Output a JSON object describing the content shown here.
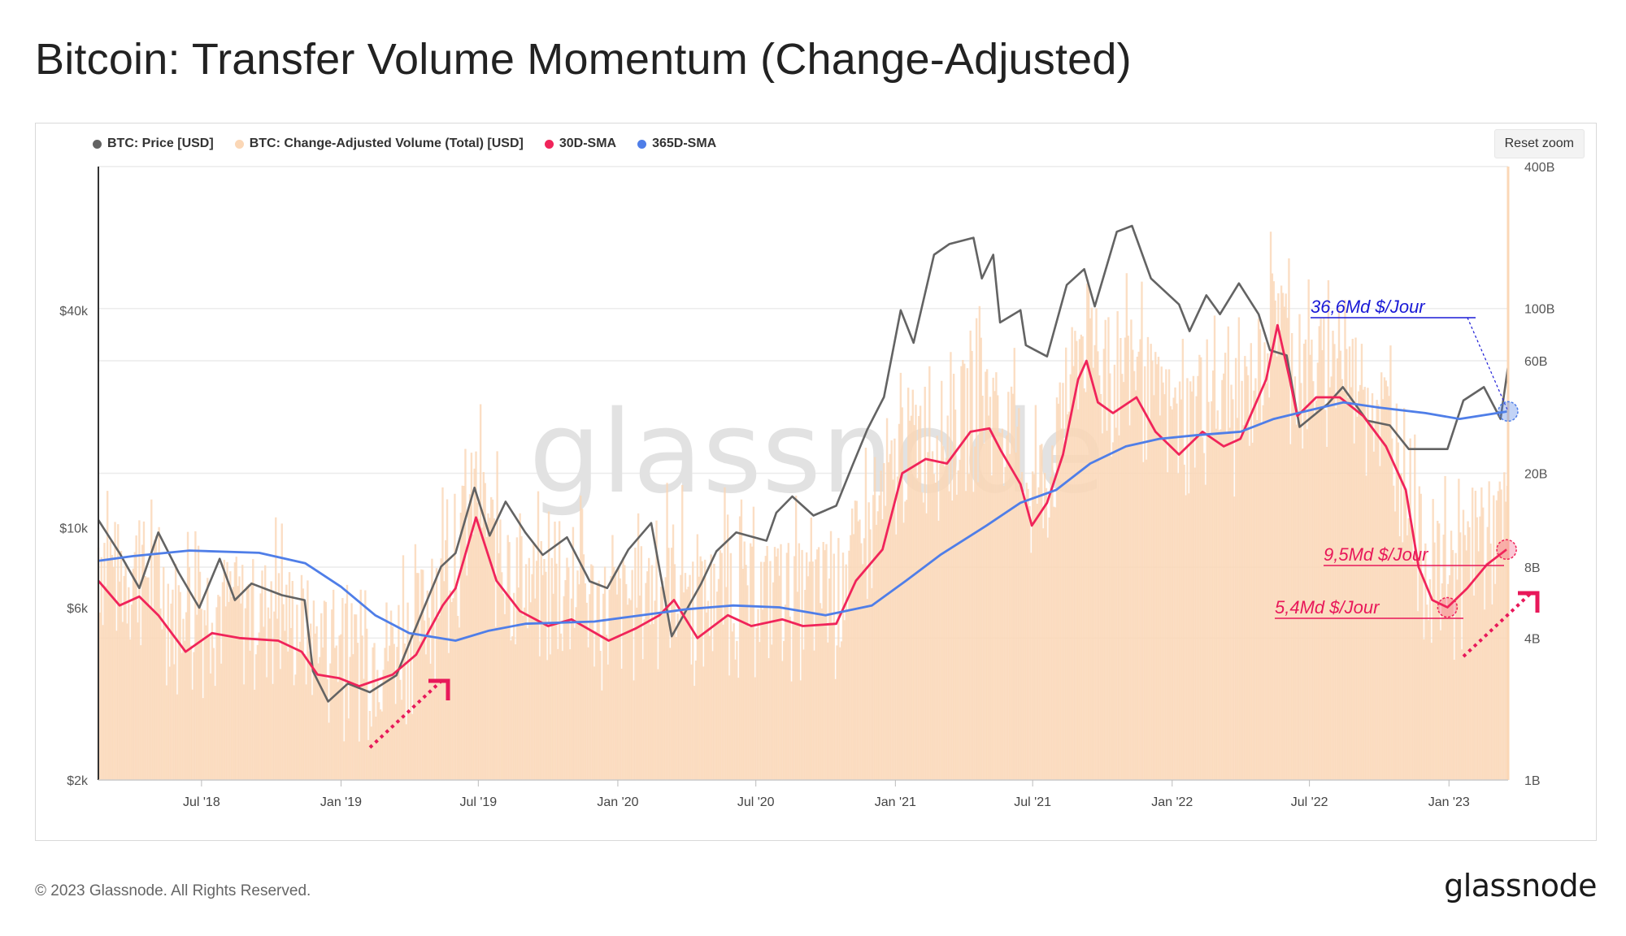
{
  "title": "Bitcoin: Transfer Volume Momentum (Change-Adjusted)",
  "reset_zoom": "Reset zoom",
  "watermark": "glassnode",
  "copyright": "© 2023 Glassnode. All Rights Reserved.",
  "brand": "glassnode",
  "legend": [
    {
      "label": "BTC: Price [USD]",
      "color": "#636363"
    },
    {
      "label": "BTC: Change-Adjusted Volume (Total) [USD]",
      "color": "#fbd7b6"
    },
    {
      "label": "30D-SMA",
      "color": "#f0245a"
    },
    {
      "label": "365D-SMA",
      "color": "#4f7ee8"
    }
  ],
  "chart_data": {
    "type": "line",
    "x_ticks": [
      "Jul '18",
      "Jan '19",
      "Jul '19",
      "Jan '20",
      "Jul '20",
      "Jan '21",
      "Jul '21",
      "Jan '22",
      "Jul '22",
      "Jan '23"
    ],
    "x_range": [
      "2018-02-15",
      "2023-03-20"
    ],
    "y_left": {
      "scale": "log",
      "ticks": [
        "$2k",
        "$6k",
        "$10k",
        "$40k"
      ],
      "tick_values": [
        2000,
        6000,
        10000,
        40000
      ],
      "range": [
        2000,
        100000
      ]
    },
    "y_right": {
      "scale": "log",
      "ticks": [
        "1B",
        "4B",
        "8B",
        "20B",
        "60B",
        "100B",
        "400B"
      ],
      "tick_values": [
        1,
        4,
        8,
        20,
        60,
        100,
        400
      ],
      "range": [
        1,
        400
      ],
      "unit": "B"
    },
    "grid": true,
    "legend_position": "top-left",
    "series": [
      {
        "name": "BTC: Price [USD]",
        "axis": "left",
        "color": "#636363",
        "points": [
          [
            "2018-02-15",
            10500
          ],
          [
            "2018-03-15",
            8500
          ],
          [
            "2018-04-10",
            6800
          ],
          [
            "2018-05-05",
            9700
          ],
          [
            "2018-06-01",
            7500
          ],
          [
            "2018-06-28",
            6000
          ],
          [
            "2018-07-25",
            8200
          ],
          [
            "2018-08-14",
            6300
          ],
          [
            "2018-09-05",
            7000
          ],
          [
            "2018-10-15",
            6500
          ],
          [
            "2018-11-14",
            6300
          ],
          [
            "2018-11-25",
            4000
          ],
          [
            "2018-12-15",
            3300
          ],
          [
            "2019-01-10",
            3700
          ],
          [
            "2019-02-08",
            3500
          ],
          [
            "2019-03-15",
            3900
          ],
          [
            "2019-04-03",
            4900
          ],
          [
            "2019-05-13",
            7800
          ],
          [
            "2019-06-01",
            8500
          ],
          [
            "2019-06-26",
            12900
          ],
          [
            "2019-07-16",
            9500
          ],
          [
            "2019-08-06",
            11800
          ],
          [
            "2019-09-01",
            9700
          ],
          [
            "2019-09-24",
            8400
          ],
          [
            "2019-10-26",
            9400
          ],
          [
            "2019-11-25",
            7100
          ],
          [
            "2019-12-18",
            6800
          ],
          [
            "2020-01-15",
            8700
          ],
          [
            "2020-02-14",
            10300
          ],
          [
            "2020-03-12",
            5000
          ],
          [
            "2020-04-20",
            7000
          ],
          [
            "2020-05-10",
            8600
          ],
          [
            "2020-06-05",
            9700
          ],
          [
            "2020-07-15",
            9200
          ],
          [
            "2020-07-28",
            11000
          ],
          [
            "2020-08-18",
            12200
          ],
          [
            "2020-09-15",
            10800
          ],
          [
            "2020-10-15",
            11500
          ],
          [
            "2020-11-05",
            14800
          ],
          [
            "2020-11-25",
            18700
          ],
          [
            "2020-12-17",
            23000
          ],
          [
            "2021-01-08",
            40000
          ],
          [
            "2021-01-25",
            32500
          ],
          [
            "2021-02-21",
            57000
          ],
          [
            "2021-03-13",
            61000
          ],
          [
            "2021-04-14",
            63500
          ],
          [
            "2021-04-25",
            49000
          ],
          [
            "2021-05-10",
            57000
          ],
          [
            "2021-05-19",
            37000
          ],
          [
            "2021-06-15",
            40000
          ],
          [
            "2021-06-22",
            32000
          ],
          [
            "2021-07-20",
            29800
          ],
          [
            "2021-08-15",
            47000
          ],
          [
            "2021-09-07",
            52000
          ],
          [
            "2021-09-21",
            41000
          ],
          [
            "2021-10-20",
            66000
          ],
          [
            "2021-11-09",
            68500
          ],
          [
            "2021-12-04",
            49000
          ],
          [
            "2022-01-10",
            41500
          ],
          [
            "2022-01-24",
            35000
          ],
          [
            "2022-02-15",
            44000
          ],
          [
            "2022-03-05",
            39000
          ],
          [
            "2022-03-30",
            47500
          ],
          [
            "2022-04-25",
            39000
          ],
          [
            "2022-05-10",
            31000
          ],
          [
            "2022-06-01",
            30000
          ],
          [
            "2022-06-18",
            19000
          ],
          [
            "2022-07-25",
            22000
          ],
          [
            "2022-08-14",
            24500
          ],
          [
            "2022-09-15",
            19800
          ],
          [
            "2022-10-15",
            19200
          ],
          [
            "2022-11-09",
            16500
          ],
          [
            "2022-12-30",
            16500
          ],
          [
            "2023-01-20",
            22500
          ],
          [
            "2023-02-16",
            24500
          ],
          [
            "2023-03-10",
            20000
          ],
          [
            "2023-03-20",
            28000
          ]
        ]
      },
      {
        "name": "30D-SMA",
        "axis": "right",
        "color": "#f0245a",
        "points": [
          [
            "2018-02-15",
            7
          ],
          [
            "2018-03-15",
            5.5
          ],
          [
            "2018-04-10",
            6
          ],
          [
            "2018-05-05",
            5
          ],
          [
            "2018-06-10",
            3.5
          ],
          [
            "2018-07-15",
            4.2
          ],
          [
            "2018-08-20",
            4
          ],
          [
            "2018-10-10",
            3.9
          ],
          [
            "2018-11-10",
            3.5
          ],
          [
            "2018-12-01",
            2.8
          ],
          [
            "2018-12-30",
            2.7
          ],
          [
            "2019-01-25",
            2.5
          ],
          [
            "2019-03-10",
            2.8
          ],
          [
            "2019-04-10",
            3.4
          ],
          [
            "2019-05-15",
            5.5
          ],
          [
            "2019-06-01",
            6.5
          ],
          [
            "2019-06-28",
            13
          ],
          [
            "2019-07-25",
            7
          ],
          [
            "2019-08-25",
            5.2
          ],
          [
            "2019-10-01",
            4.5
          ],
          [
            "2019-11-01",
            4.8
          ],
          [
            "2019-12-20",
            3.9
          ],
          [
            "2020-01-25",
            4.4
          ],
          [
            "2020-02-25",
            5
          ],
          [
            "2020-03-15",
            5.8
          ],
          [
            "2020-04-15",
            4
          ],
          [
            "2020-05-25",
            5
          ],
          [
            "2020-06-25",
            4.5
          ],
          [
            "2020-08-05",
            4.8
          ],
          [
            "2020-09-01",
            4.5
          ],
          [
            "2020-10-15",
            4.6
          ],
          [
            "2020-11-10",
            7
          ],
          [
            "2020-12-15",
            9.5
          ],
          [
            "2021-01-10",
            20
          ],
          [
            "2021-02-10",
            23
          ],
          [
            "2021-03-10",
            22
          ],
          [
            "2021-04-10",
            30
          ],
          [
            "2021-05-05",
            31
          ],
          [
            "2021-05-20",
            25
          ],
          [
            "2021-06-15",
            18
          ],
          [
            "2021-06-30",
            12
          ],
          [
            "2021-07-20",
            15
          ],
          [
            "2021-08-10",
            24
          ],
          [
            "2021-08-30",
            50
          ],
          [
            "2021-09-10",
            60
          ],
          [
            "2021-09-25",
            40
          ],
          [
            "2021-10-15",
            36
          ],
          [
            "2021-11-15",
            42
          ],
          [
            "2021-12-10",
            30
          ],
          [
            "2022-01-10",
            24
          ],
          [
            "2022-02-10",
            30
          ],
          [
            "2022-03-10",
            26
          ],
          [
            "2022-04-01",
            28
          ],
          [
            "2022-05-05",
            50
          ],
          [
            "2022-05-20",
            85
          ],
          [
            "2022-06-05",
            50
          ],
          [
            "2022-06-15",
            35
          ],
          [
            "2022-07-10",
            42
          ],
          [
            "2022-08-10",
            42
          ],
          [
            "2022-09-10",
            35
          ],
          [
            "2022-10-10",
            26
          ],
          [
            "2022-11-05",
            17
          ],
          [
            "2022-11-22",
            8
          ],
          [
            "2022-12-10",
            5.8
          ],
          [
            "2022-12-30",
            5.4
          ],
          [
            "2023-01-25",
            6.5
          ],
          [
            "2023-02-20",
            8.2
          ],
          [
            "2023-03-18",
            9.5
          ]
        ]
      },
      {
        "name": "365D-SMA",
        "axis": "right",
        "color": "#4f7ee8",
        "points": [
          [
            "2018-02-15",
            8.5
          ],
          [
            "2018-04-01",
            8.9
          ],
          [
            "2018-06-15",
            9.4
          ],
          [
            "2018-09-15",
            9.2
          ],
          [
            "2018-11-15",
            8.3
          ],
          [
            "2019-01-01",
            6.6
          ],
          [
            "2019-02-15",
            5
          ],
          [
            "2019-04-01",
            4.2
          ],
          [
            "2019-06-01",
            3.9
          ],
          [
            "2019-07-15",
            4.3
          ],
          [
            "2019-09-01",
            4.6
          ],
          [
            "2019-12-01",
            4.7
          ],
          [
            "2020-02-01",
            5
          ],
          [
            "2020-04-01",
            5.3
          ],
          [
            "2020-06-01",
            5.5
          ],
          [
            "2020-08-01",
            5.4
          ],
          [
            "2020-10-01",
            5
          ],
          [
            "2020-12-01",
            5.5
          ],
          [
            "2021-01-15",
            7
          ],
          [
            "2021-03-01",
            9
          ],
          [
            "2021-05-01",
            12
          ],
          [
            "2021-06-15",
            15
          ],
          [
            "2021-08-01",
            17
          ],
          [
            "2021-09-15",
            22
          ],
          [
            "2021-11-01",
            26
          ],
          [
            "2021-12-15",
            28
          ],
          [
            "2022-02-01",
            29
          ],
          [
            "2022-04-01",
            30
          ],
          [
            "2022-05-15",
            34
          ],
          [
            "2022-07-01",
            37
          ],
          [
            "2022-08-15",
            40
          ],
          [
            "2022-10-01",
            38
          ],
          [
            "2022-12-01",
            36
          ],
          [
            "2023-01-15",
            34
          ],
          [
            "2023-03-20",
            36.6
          ]
        ]
      }
    ],
    "annotations": [
      {
        "text": "36,6Md $/Jour",
        "series": "365D-SMA",
        "date": "2023-03-20",
        "value": 36.6,
        "color": "#1a1ad6"
      },
      {
        "text": "9,5Md $/Jour",
        "series": "30D-SMA",
        "date": "2023-03-18",
        "value": 9.5,
        "color": "#e8185a"
      },
      {
        "text": "5,4Md $/Jour",
        "series": "30D-SMA",
        "date": "2022-12-30",
        "value": 5.4,
        "color": "#e8185a"
      }
    ]
  }
}
